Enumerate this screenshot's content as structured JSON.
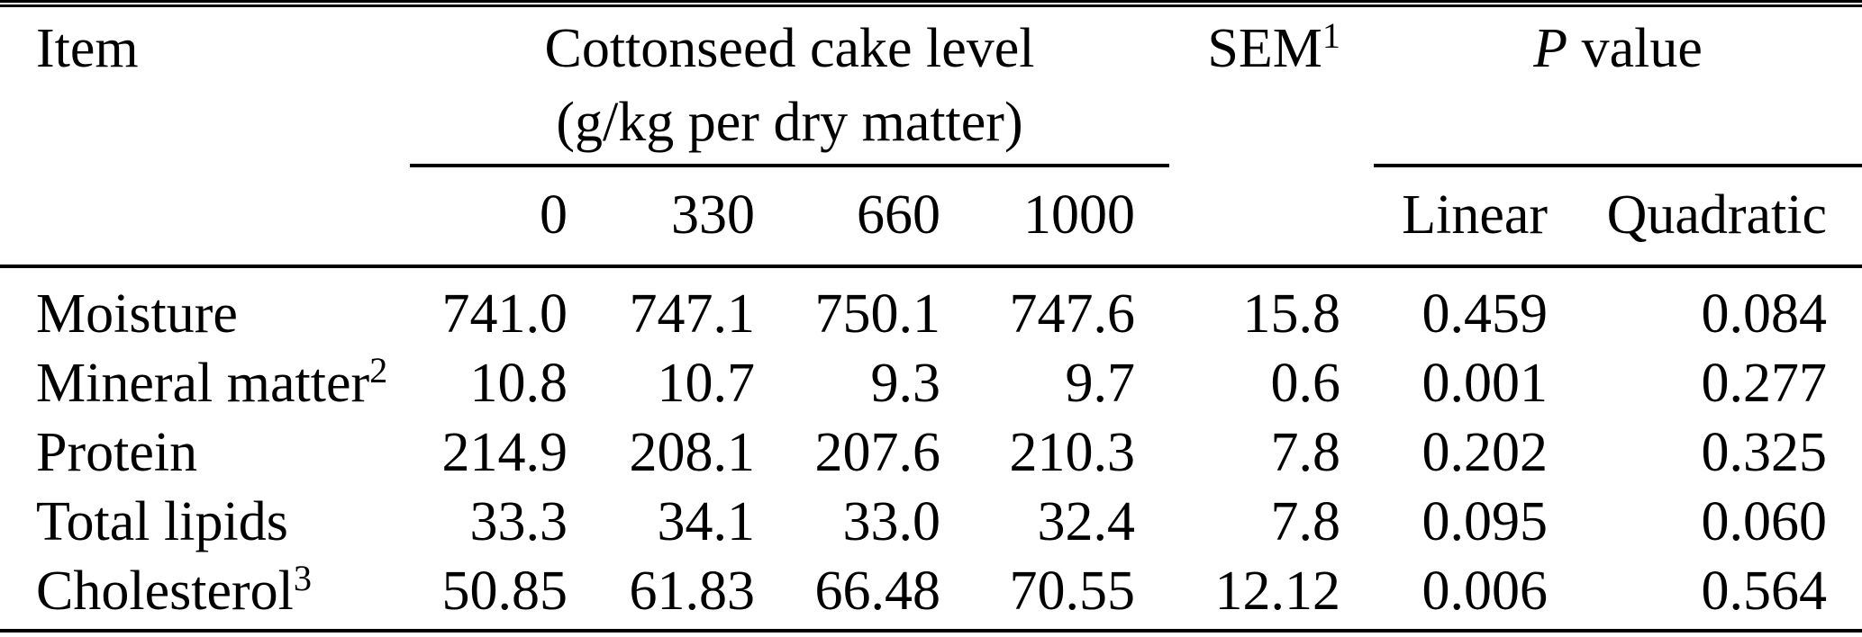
{
  "header": {
    "item": "Item",
    "group": {
      "line1": "Cottonseed cake level",
      "line2": "(g/kg per dry matter)",
      "levels": [
        "0",
        "330",
        "660",
        "1000"
      ]
    },
    "sem": {
      "label": "SEM",
      "sup": "1"
    },
    "pvalue": {
      "label_italic": "P",
      "label_rest": " value",
      "columns": [
        "Linear",
        "Quadratic"
      ]
    }
  },
  "rows": [
    {
      "item": "Moisture",
      "item_sup": "",
      "values": [
        "741.0",
        "747.1",
        "750.1",
        "747.6"
      ],
      "sem": "15.8",
      "p_linear": "0.459",
      "p_quadratic": "0.084"
    },
    {
      "item": "Mineral matter",
      "item_sup": "2",
      "values": [
        "10.8",
        "10.7",
        "9.3",
        "9.7"
      ],
      "sem": "0.6",
      "p_linear": "0.001",
      "p_quadratic": "0.277"
    },
    {
      "item": "Protein",
      "item_sup": "",
      "values": [
        "214.9",
        "208.1",
        "207.6",
        "210.3"
      ],
      "sem": "7.8",
      "p_linear": "0.202",
      "p_quadratic": "0.325"
    },
    {
      "item": "Total lipids",
      "item_sup": "",
      "values": [
        "33.3",
        "34.1",
        "33.0",
        "32.4"
      ],
      "sem": "7.8",
      "p_linear": "0.095",
      "p_quadratic": "0.060"
    },
    {
      "item": "Cholesterol",
      "item_sup": "3",
      "values": [
        "50.85",
        "61.83",
        "66.48",
        "70.55"
      ],
      "sem": "12.12",
      "p_linear": "0.006",
      "p_quadratic": "0.564"
    }
  ],
  "colors": {
    "text": "#000000",
    "background": "#ffffff",
    "rule": "#000000"
  },
  "chart_data": {
    "type": "table",
    "title": "",
    "column_group_headers": [
      "Item",
      "Cottonseed cake level (g/kg per dry matter)",
      "SEM",
      "P value"
    ],
    "columns": [
      "Item",
      "0",
      "330",
      "660",
      "1000",
      "SEM",
      "Linear",
      "Quadratic"
    ],
    "rows": [
      [
        "Moisture",
        741.0,
        747.1,
        750.1,
        747.6,
        15.8,
        0.459,
        0.084
      ],
      [
        "Mineral matter",
        10.8,
        10.7,
        9.3,
        9.7,
        0.6,
        0.001,
        0.277
      ],
      [
        "Protein",
        214.9,
        208.1,
        207.6,
        210.3,
        7.8,
        0.202,
        0.325
      ],
      [
        "Total lipids",
        33.3,
        34.1,
        33.0,
        32.4,
        7.8,
        0.095,
        0.06
      ],
      [
        "Cholesterol",
        50.85,
        61.83,
        66.48,
        70.55,
        12.12,
        0.006,
        0.564
      ]
    ]
  }
}
